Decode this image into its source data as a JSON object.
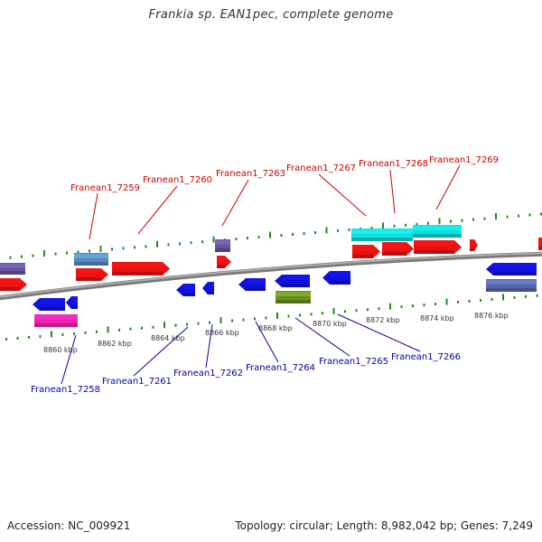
{
  "title": "Frankia sp. EAN1pec, complete genome",
  "footer": {
    "accession": "Accession: NC_009921",
    "summary": "Topology: circular; Length: 8,982,042 bp; Genes: 7,249"
  },
  "colors": {
    "forward_label": "#cc0000",
    "reverse_label": "#0000aa",
    "tick": "#228822",
    "backbone": "#888888"
  },
  "scale": {
    "unit": "kbp",
    "labels": [
      "8860 kbp",
      "8862 kbp",
      "8864 kbp",
      "8866 kbp",
      "8868 kbp",
      "8870 kbp",
      "8872 kbp",
      "8874 kbp",
      "8876 kbp"
    ]
  },
  "forward_labels": [
    "Franean1_7259",
    "Franean1_7260",
    "Franean1_7263",
    "Franean1_7267",
    "Franean1_7268",
    "Franean1_7269"
  ],
  "reverse_labels": [
    "Franean1_7258",
    "Franean1_7261",
    "Franean1_7262",
    "Franean1_7264",
    "Franean1_7265",
    "Franean1_7266"
  ]
}
